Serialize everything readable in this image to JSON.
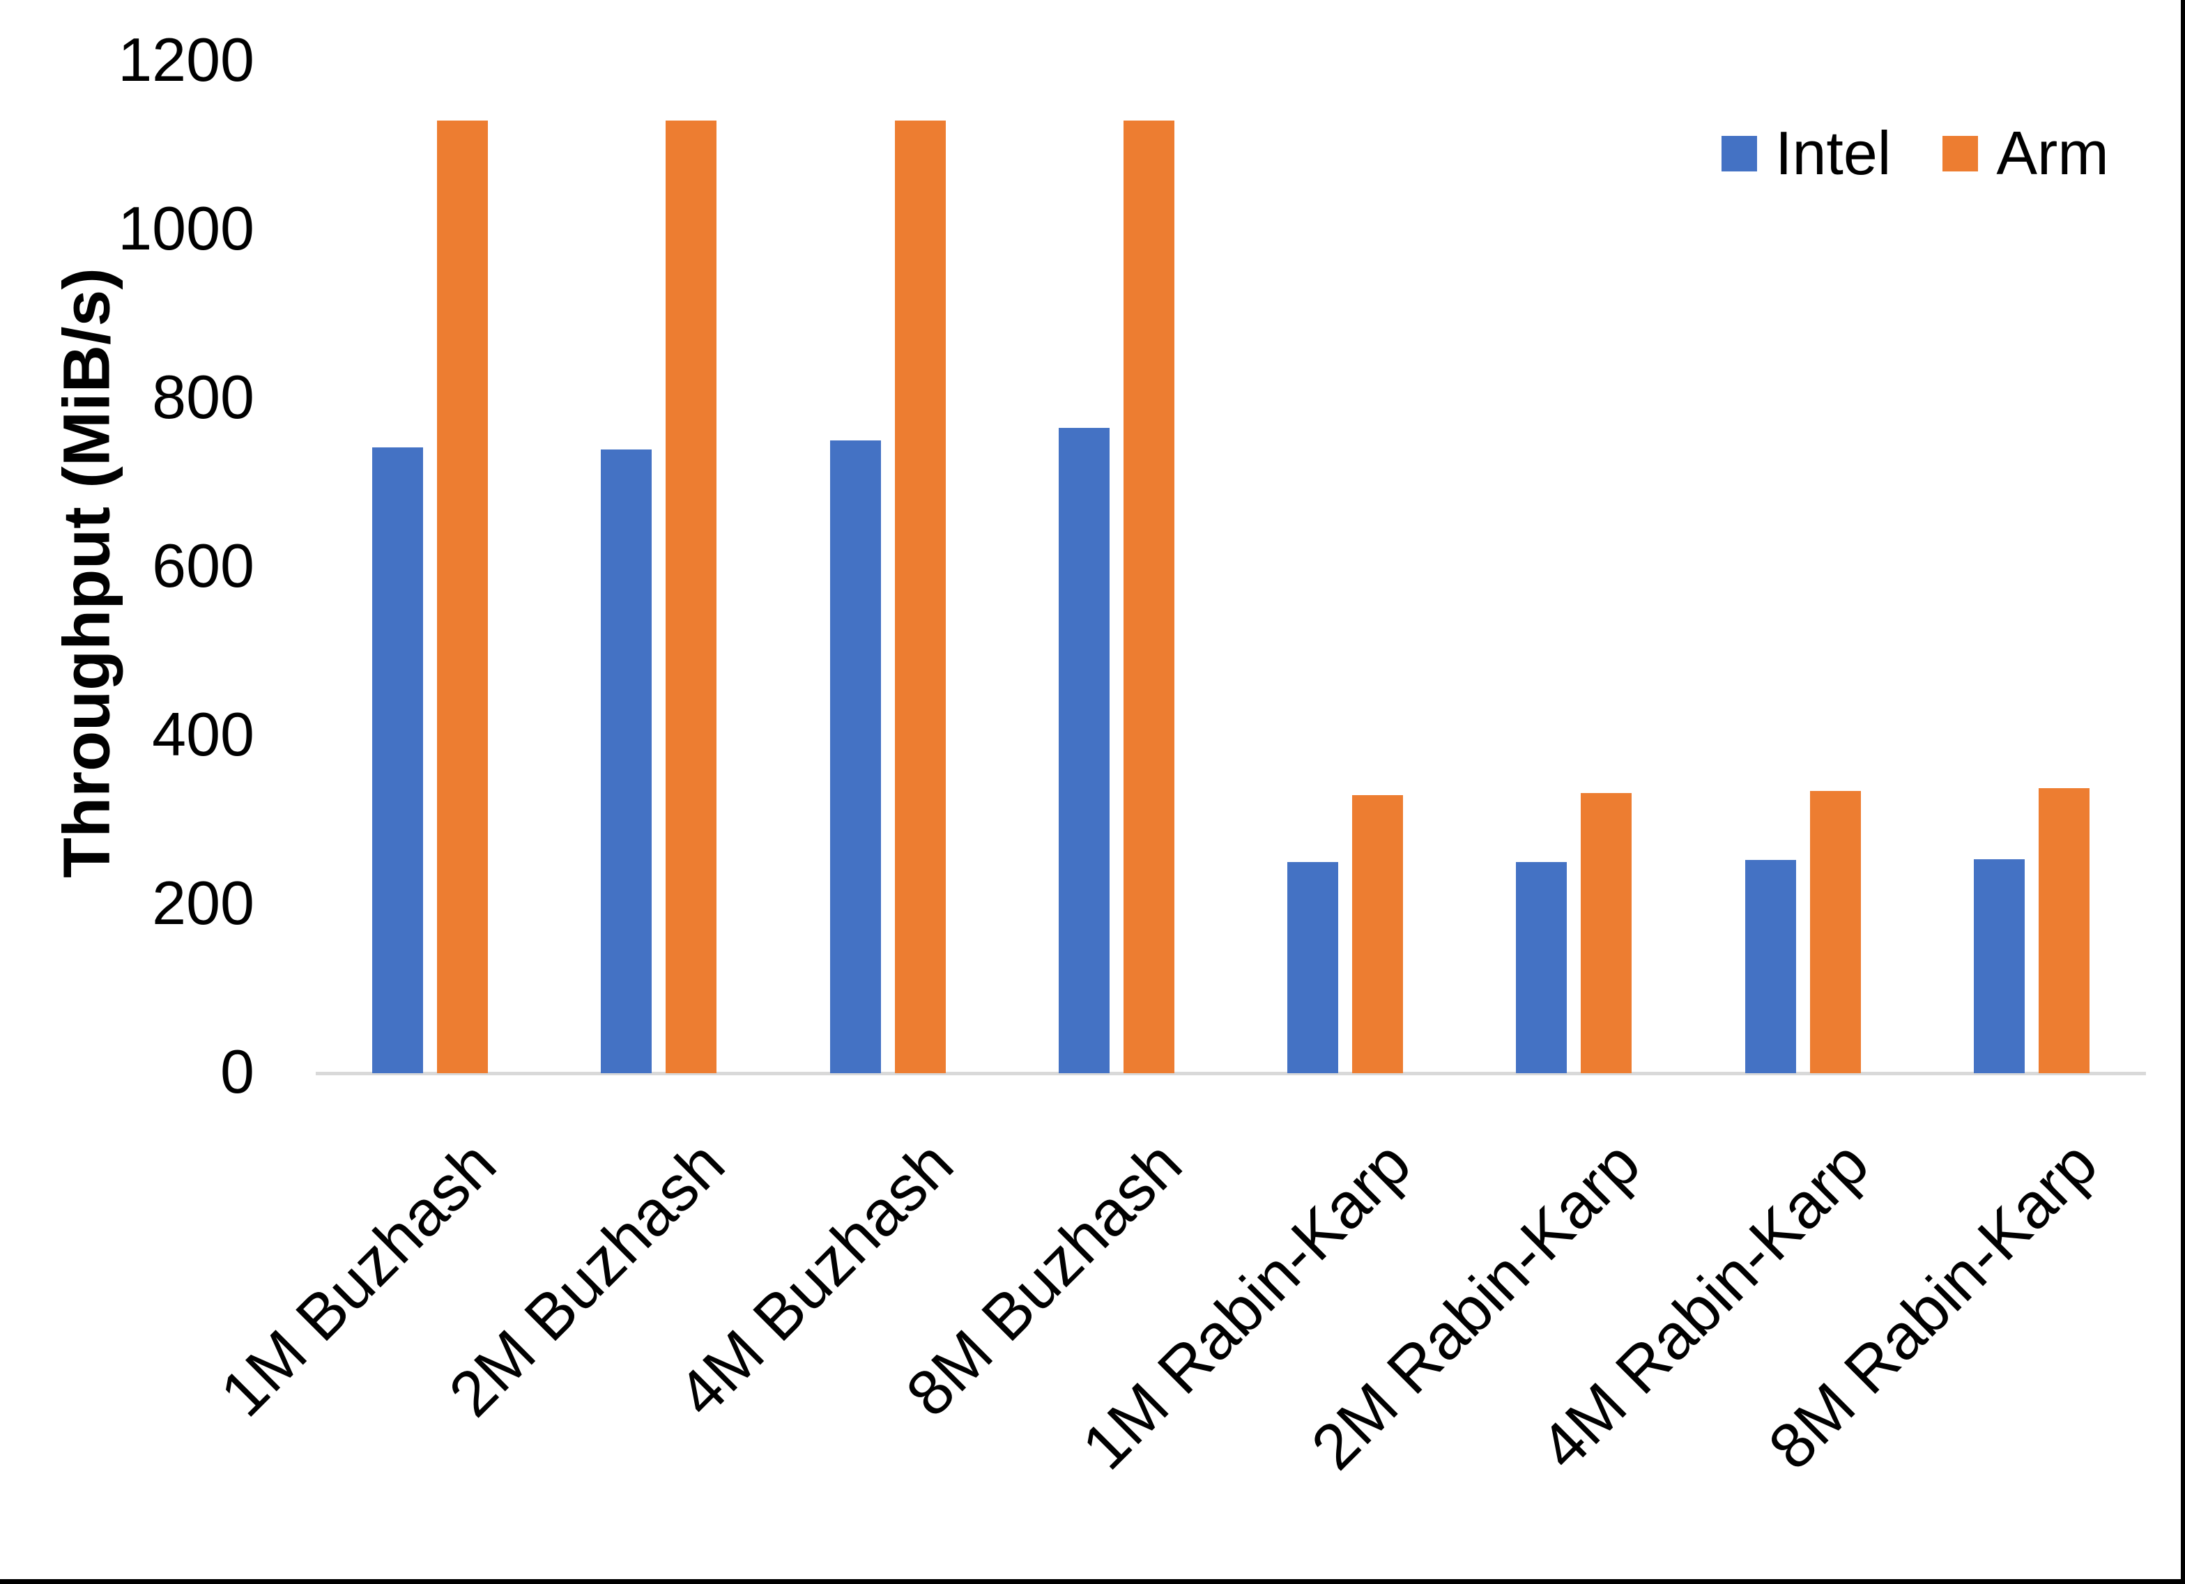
{
  "chart": {
    "y_axis_title": "Throughput (MiB/s)",
    "legend": {
      "items": [
        {
          "label": "Intel",
          "color": "#4472C4"
        },
        {
          "label": "Arm",
          "color": "#ED7D31"
        }
      ],
      "position": "top-right"
    },
    "axis_line_color": "#D9D9D9",
    "text_color": "#000000",
    "border_color": "#000000"
  },
  "chart_data": {
    "type": "bar",
    "title": "",
    "xlabel": "",
    "ylabel": "Throughput (MiB/s)",
    "ylim": [
      0,
      1200
    ],
    "yticks": [
      0,
      200,
      400,
      600,
      800,
      1000,
      1200
    ],
    "grid": false,
    "legend_position": "top-right",
    "categories": [
      "1M Buzhash",
      "2M Buzhash",
      "4M Buzhash",
      "8M Buzhash",
      "1M Rabin-Karp",
      "2M Rabin-Karp",
      "4M Rabin-Karp",
      "8M Rabin-Karp"
    ],
    "series": [
      {
        "name": "Intel",
        "color": "#4472C4",
        "values": [
          742,
          740,
          750,
          765,
          250,
          250,
          253,
          254
        ]
      },
      {
        "name": "Arm",
        "color": "#ED7D31",
        "values": [
          1130,
          1130,
          1130,
          1130,
          330,
          332,
          335,
          338
        ]
      }
    ]
  }
}
